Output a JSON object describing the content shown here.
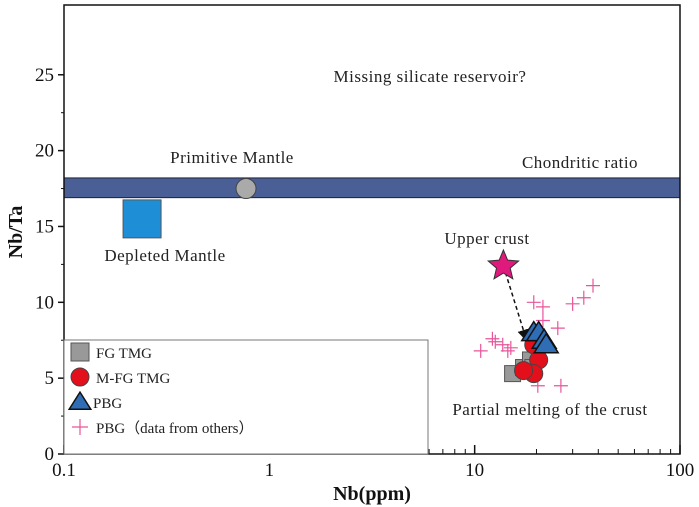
{
  "chart_data": {
    "type": "scatter",
    "xlabel": "Nb(ppm)",
    "ylabel": "Nb/Ta",
    "xscale": "log",
    "xlim": [
      0.1,
      100
    ],
    "ylim": [
      0,
      29.6
    ],
    "xticks": [
      0.1,
      1,
      10,
      100
    ],
    "xtick_labels": [
      "0.1",
      "1",
      "10",
      "100"
    ],
    "yticks": [
      0,
      5,
      10,
      15,
      20,
      25
    ],
    "ytick_labels": [
      "0",
      "5",
      "10",
      "15",
      "20",
      "25"
    ],
    "grid": false,
    "legend_position": "bottom-left",
    "chondritic_band": {
      "label": "Chondritic ratio",
      "y_range": [
        16.9,
        18.2
      ],
      "color": "#4a5f96"
    },
    "annotations": {
      "missing": "Missing silicate reservoir?",
      "primitive": "Primitive Mantle",
      "depleted": "Depleted Mantle",
      "upper": "Upper crust",
      "partial": "Partial melting of the crust"
    },
    "reference_points": [
      {
        "name": "Primitive Mantle",
        "x": 0.77,
        "y": 17.5,
        "marker": "circle",
        "color": "#aaaaaa"
      },
      {
        "name": "Depleted Mantle",
        "x": 0.24,
        "y": 15.5,
        "marker": "square",
        "color": "#1e8fd6"
      },
      {
        "name": "Upper crust",
        "x": 13.8,
        "y": 12.4,
        "marker": "star",
        "color": "#e0197d"
      }
    ],
    "arrow": {
      "from": [
        13.8,
        12.4
      ],
      "to": [
        17.8,
        7.6
      ]
    },
    "series": [
      {
        "name": "FG TMG",
        "marker": "square",
        "color": "#999999",
        "points": [
          [
            15.3,
            5.3
          ],
          [
            17.3,
            5.7
          ],
          [
            18.7,
            6.2
          ],
          [
            19.2,
            5.7
          ]
        ]
      },
      {
        "name": "M-FG TMG",
        "marker": "circle",
        "color": "#e3101b",
        "points": [
          [
            19.4,
            7.2
          ],
          [
            20.5,
            6.2
          ],
          [
            19.4,
            5.3
          ],
          [
            17.3,
            5.5
          ]
        ]
      },
      {
        "name": "PBG",
        "marker": "triangle",
        "color": "#2f6db5",
        "points": [
          [
            19.4,
            8.0
          ],
          [
            20.5,
            8.0
          ],
          [
            21.8,
            7.5
          ],
          [
            22.3,
            7.2
          ]
        ]
      },
      {
        "name": "PBG（data from others）",
        "marker": "plus",
        "color": "#e8559a",
        "points": [
          [
            37.7,
            11.1
          ],
          [
            34,
            10.3
          ],
          [
            30,
            9.9
          ],
          [
            19.4,
            10.0
          ],
          [
            21.5,
            9.7
          ],
          [
            21.5,
            8.8
          ],
          [
            25.4,
            8.3
          ],
          [
            12.2,
            7.6
          ],
          [
            12.6,
            7.4
          ],
          [
            13.7,
            7.2
          ],
          [
            15,
            7.0
          ],
          [
            14.5,
            6.8
          ],
          [
            10.7,
            6.8
          ],
          [
            20.3,
            4.5
          ],
          [
            26.3,
            4.5
          ]
        ]
      }
    ]
  }
}
